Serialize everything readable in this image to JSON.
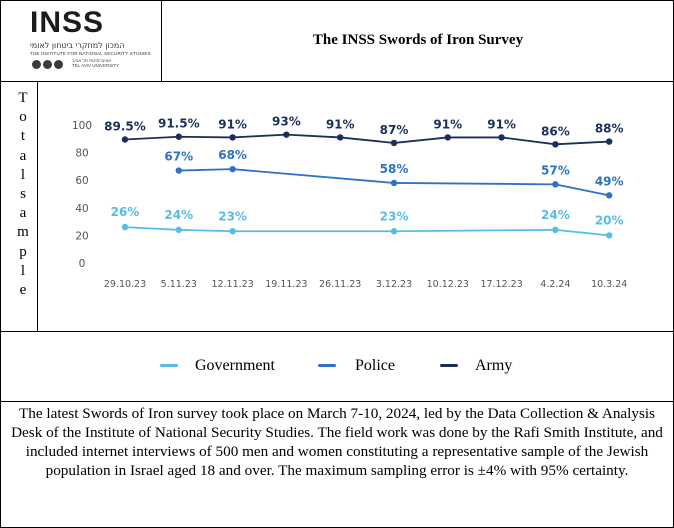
{
  "header": {
    "logo_text": "INSS",
    "logo_hebrew": "המכון למחקרי ביטחון לאומי",
    "logo_english": "THE INSTITUTE FOR NATIONAL SECURITY STUDIES",
    "logo_affiliation_hebrew": "אוניברסיטת תל אביב",
    "logo_affiliation_english": "TEL AVIV UNIVERSITY",
    "title": "The INSS Swords of Iron Survey"
  },
  "side_label": "Total sample",
  "chart_data": {
    "type": "line",
    "categories": [
      "29.10.23",
      "5.11.23",
      "12.11.23",
      "19.11.23",
      "26.11.23",
      "3.12.23",
      "10.12.23",
      "17.12.23",
      "4.2.24",
      "10.3.24"
    ],
    "ylim": [
      0,
      100
    ],
    "yticks": [
      0,
      20,
      40,
      60,
      80,
      100
    ],
    "grid": false,
    "series": [
      {
        "name": "Army",
        "color": "#1b2f5b",
        "values": [
          89.5,
          91.5,
          91,
          93,
          91,
          87,
          91,
          91,
          86,
          88
        ],
        "labels": [
          "89.5%",
          "91.5%",
          "91%",
          "93%",
          "91%",
          "87%",
          "91%",
          "91%",
          "86%",
          "88%"
        ]
      },
      {
        "name": "Police",
        "color": "#2d72c4",
        "values": [
          null,
          67,
          68,
          null,
          null,
          58,
          null,
          null,
          57,
          49
        ],
        "labels": [
          null,
          "67%",
          "68%",
          null,
          null,
          "58%",
          null,
          null,
          "57%",
          "49%"
        ]
      },
      {
        "name": "Government",
        "color": "#55bde8",
        "values": [
          26,
          24,
          23,
          null,
          null,
          23,
          null,
          null,
          24,
          20
        ],
        "labels": [
          "26%",
          "24%",
          "23%",
          null,
          null,
          "23%",
          null,
          null,
          "24%",
          "20%"
        ]
      }
    ]
  },
  "legend": {
    "items": [
      {
        "key": "government",
        "label": "Government",
        "color": "#55bde8"
      },
      {
        "key": "police",
        "label": "Police",
        "color": "#2d72c4"
      },
      {
        "key": "army",
        "label": "Army",
        "color": "#1b2f5b"
      }
    ]
  },
  "note": "The latest Swords of Iron survey took place on March 7-10, 2024, led by the Data Collection & Analysis Desk of the Institute of National Security Studies. The field work was done by the Rafi Smith Institute, and included internet interviews of 500 men and women constituting a representative sample of the Jewish population in Israel aged 18 and over. The maximum sampling error is ±4% with 95% certainty."
}
